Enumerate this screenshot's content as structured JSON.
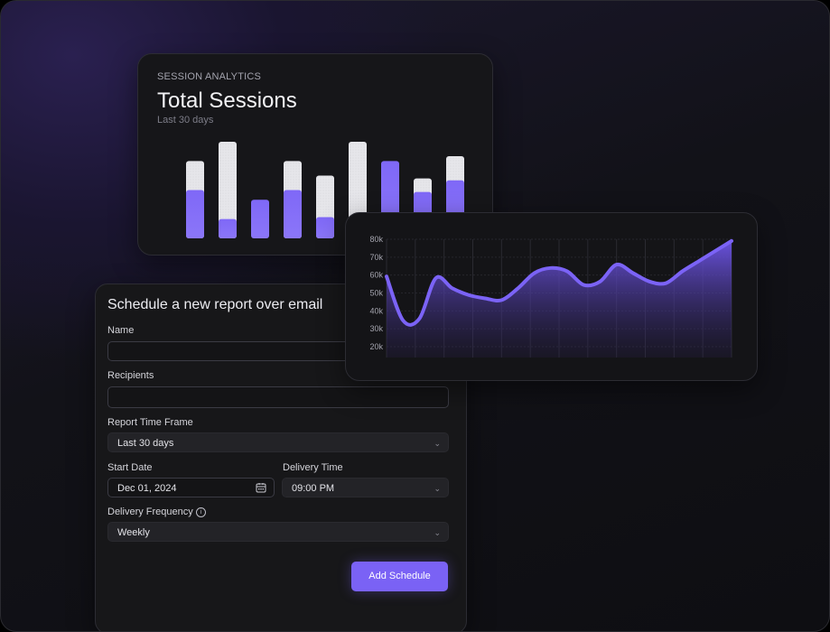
{
  "sessions_card": {
    "eyebrow": "SESSION ANALYTICS",
    "title": "Total Sessions",
    "subtitle": "Last 30 days"
  },
  "chart_data": [
    {
      "type": "bar",
      "series": [
        {
          "color": "#e8e8ec",
          "values": [
            80,
            100,
            0,
            80,
            65,
            100,
            0,
            62,
            85
          ]
        },
        {
          "color": "#7b63f6",
          "values": [
            50,
            20,
            40,
            50,
            22,
            0,
            80,
            48,
            60
          ]
        }
      ],
      "categories": [
        "",
        "",
        "",
        "",
        "",
        "",
        "",
        "",
        ""
      ],
      "ylim": [
        0,
        100
      ]
    },
    {
      "type": "area",
      "y_tick_labels": [
        "80k",
        "70k",
        "60k",
        "50k",
        "40k",
        "30k",
        "20k"
      ],
      "ylim": [
        10000,
        80000
      ],
      "x": [
        0,
        1,
        2,
        3,
        4,
        5,
        6,
        7,
        8,
        9,
        10,
        11,
        12,
        13,
        14,
        15,
        16,
        17,
        18,
        19,
        20,
        21
      ],
      "values": [
        58000,
        32000,
        33000,
        57000,
        51000,
        47000,
        45000,
        44000,
        51000,
        60000,
        63000,
        61000,
        53000,
        55000,
        65000,
        60000,
        55000,
        54000,
        61000,
        67000,
        73000,
        79000
      ],
      "grid": true,
      "color": "#7b63f6"
    }
  ],
  "form": {
    "title": "Schedule a new report over email",
    "name_label": "Name",
    "name_value": "",
    "recipients_label": "Recipients",
    "recipients_value": "",
    "timeframe_label": "Report Time Frame",
    "timeframe_value": "Last 30 days",
    "start_date_label": "Start Date",
    "start_date_value": "Dec 01, 2024",
    "delivery_time_label": "Delivery Time",
    "delivery_time_value": "09:00 PM",
    "frequency_label": "Delivery Frequency",
    "frequency_value": "Weekly",
    "submit_label": "Add Schedule"
  },
  "colors": {
    "accent": "#7a62f5",
    "bar_gray": "#e8e8ec"
  },
  "icons": [
    "chevron-down-icon",
    "calendar-icon",
    "info-icon"
  ]
}
